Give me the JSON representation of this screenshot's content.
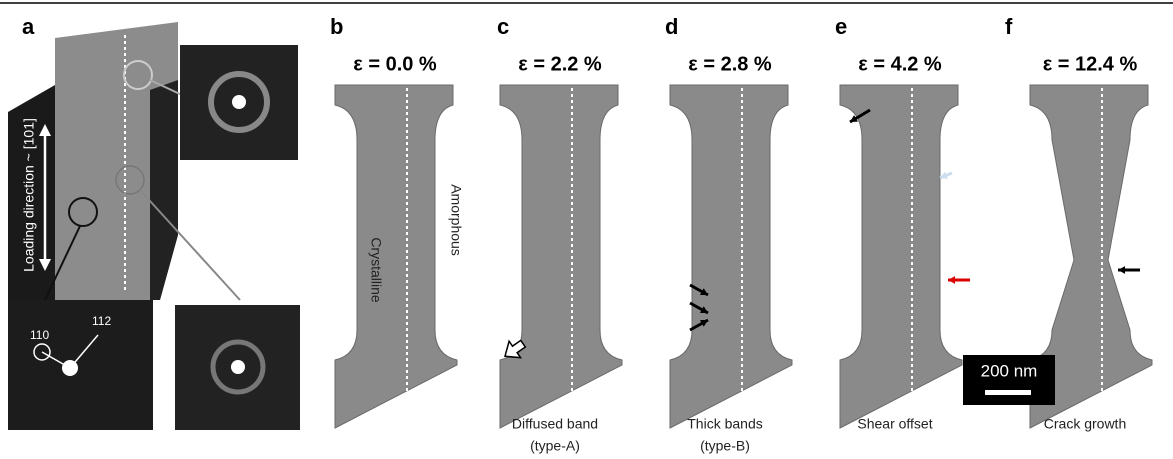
{
  "panels": [
    {
      "label": "a",
      "loading_direction": "Loading direction ~ [101]",
      "indices": [
        "110",
        "112"
      ]
    },
    {
      "label": "b",
      "strain": "ε = 0.0 %",
      "side_labels": [
        "Crystalline",
        "Amorphous"
      ]
    },
    {
      "label": "c",
      "strain": "ε = 2.2 %",
      "caption": [
        "Diffused band",
        "(type-A)"
      ]
    },
    {
      "label": "d",
      "strain": "ε = 2.8 %",
      "caption": [
        "Thick bands",
        "(type-B)"
      ]
    },
    {
      "label": "e",
      "strain": "ε = 4.2 %",
      "caption": [
        "Shear offset"
      ],
      "scale_bar": "200 nm"
    },
    {
      "label": "f",
      "strain": "ε = 12.4 %",
      "caption": [
        "Crack growth"
      ]
    }
  ]
}
